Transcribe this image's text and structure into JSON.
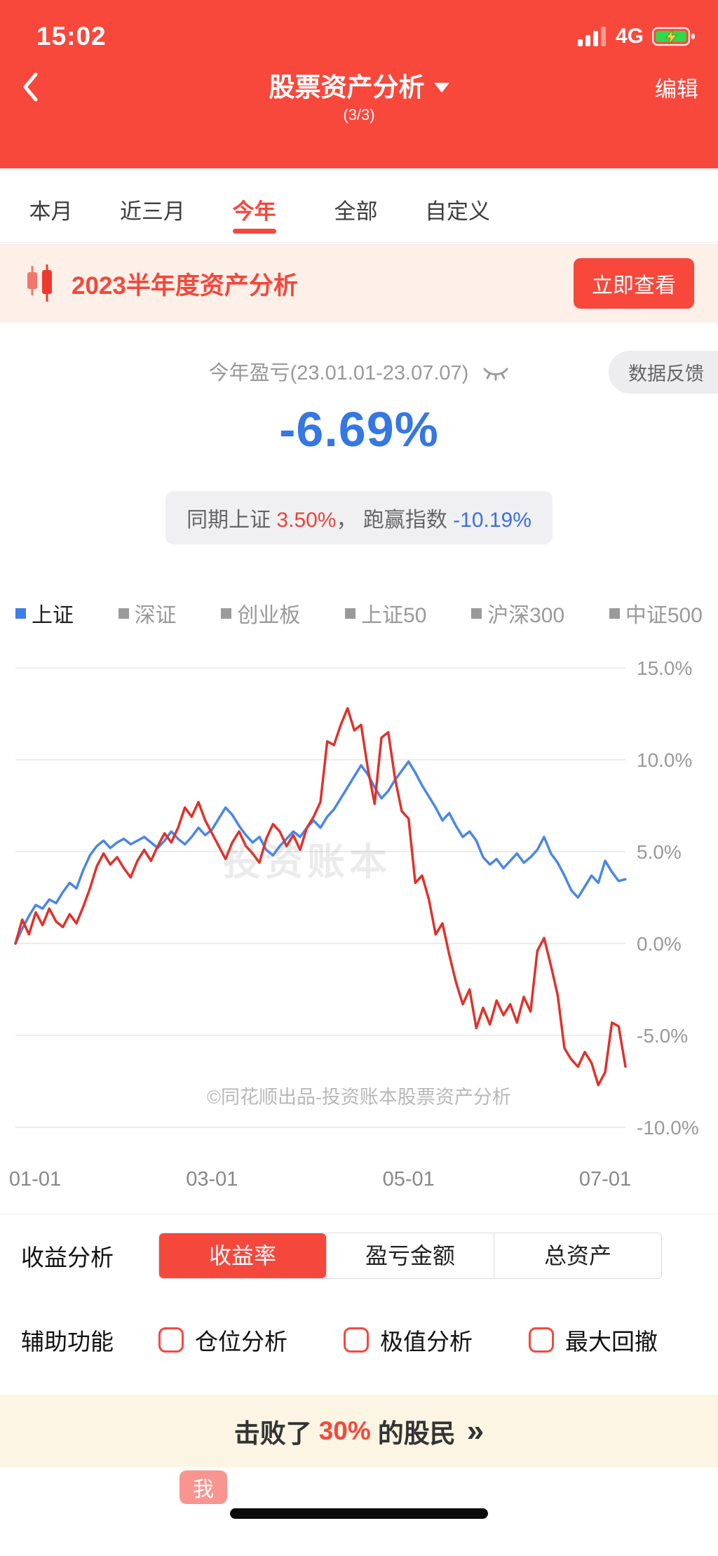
{
  "colors": {
    "accent_red": "#f8473b",
    "value_blue": "#3577e3",
    "line_blue": "#4a86e8",
    "line_red": "#e0322b"
  },
  "status_bar": {
    "time": "15:02",
    "network": "4G"
  },
  "header": {
    "title": "股票资产分析",
    "subtitle": "(3/3)",
    "edit_label": "编辑"
  },
  "tabs": [
    {
      "label": "本月",
      "active": false
    },
    {
      "label": "近三月",
      "active": false
    },
    {
      "label": "今年",
      "active": true
    },
    {
      "label": "全部",
      "active": false
    },
    {
      "label": "自定义",
      "active": false
    }
  ],
  "banner": {
    "title": "2023半年度资产分析",
    "button_label": "立即查看"
  },
  "summary": {
    "period_label": "今年盈亏(23.01.01-23.07.07)",
    "feedback_label": "数据反馈",
    "value": "-6.69%",
    "compare": {
      "prefix": "同期上证 ",
      "index_value": "3.50%",
      "mid": "， 跑赢指数 ",
      "diff_value": "-10.19%"
    }
  },
  "legend": [
    {
      "label": "上证",
      "color": "#3f7de8",
      "active": true
    },
    {
      "label": "深证",
      "color": "#9a9a9a",
      "active": false
    },
    {
      "label": "创业板",
      "color": "#9a9a9a",
      "active": false
    },
    {
      "label": "上证50",
      "color": "#9a9a9a",
      "active": false
    },
    {
      "label": "沪深300",
      "color": "#9a9a9a",
      "active": false
    },
    {
      "label": "中证500",
      "color": "#9a9a9a",
      "active": false
    }
  ],
  "chart_data": {
    "type": "line",
    "ylim": [
      -10,
      15
    ],
    "grid": true,
    "legend_position": "top-left",
    "watermark": "投资账本",
    "source_note": "©同花顺出品-投资账本股票资产分析",
    "y_ticks": [
      {
        "value": 15,
        "label": "15.0%"
      },
      {
        "value": 10,
        "label": "10.0%"
      },
      {
        "value": 5,
        "label": "5.0%"
      },
      {
        "value": 0,
        "label": "0.0%"
      },
      {
        "value": -5,
        "label": "-5.0%"
      },
      {
        "value": -10,
        "label": "-10.0%"
      }
    ],
    "x_ticks": [
      {
        "index": 0,
        "label": "01-01"
      },
      {
        "index": 29,
        "label": "03-01"
      },
      {
        "index": 58,
        "label": "05-01"
      },
      {
        "index": 87,
        "label": "07-01"
      }
    ],
    "series": [
      {
        "name": "上证",
        "color": "#4a86e8",
        "values": [
          0.0,
          0.8,
          1.5,
          2.1,
          1.9,
          2.4,
          2.2,
          2.8,
          3.3,
          3.0,
          4.0,
          4.8,
          5.3,
          5.6,
          5.2,
          5.5,
          5.7,
          5.4,
          5.6,
          5.8,
          5.5,
          5.2,
          5.6,
          6.1,
          5.7,
          5.4,
          5.8,
          6.3,
          5.9,
          6.2,
          6.8,
          7.4,
          7.0,
          6.4,
          5.9,
          5.5,
          5.8,
          5.1,
          4.8,
          5.3,
          5.7,
          6.1,
          5.8,
          6.3,
          6.7,
          6.3,
          6.9,
          7.3,
          7.9,
          8.5,
          9.1,
          9.7,
          9.2,
          8.5,
          7.9,
          8.3,
          8.9,
          9.4,
          9.9,
          9.3,
          8.6,
          8.0,
          7.4,
          6.7,
          7.1,
          6.4,
          5.8,
          6.1,
          5.6,
          4.7,
          4.3,
          4.6,
          4.1,
          4.5,
          4.9,
          4.4,
          4.7,
          5.1,
          5.8,
          4.9,
          4.4,
          3.7,
          2.9,
          2.5,
          3.1,
          3.7,
          3.3,
          4.5,
          3.9,
          3.4,
          3.5
        ]
      },
      {
        "name": "收益率",
        "color": "#e0322b",
        "values": [
          0.0,
          1.3,
          0.5,
          1.7,
          1.0,
          1.9,
          1.2,
          0.9,
          1.6,
          1.1,
          2.0,
          3.0,
          4.2,
          4.9,
          4.3,
          4.7,
          4.1,
          3.6,
          4.5,
          5.1,
          4.5,
          5.3,
          6.0,
          5.5,
          6.3,
          7.4,
          6.9,
          7.7,
          6.7,
          6.0,
          5.3,
          4.6,
          5.5,
          6.1,
          5.3,
          4.9,
          4.4,
          5.7,
          6.5,
          6.1,
          5.3,
          5.9,
          5.1,
          6.3,
          6.9,
          7.7,
          11.0,
          10.8,
          11.9,
          12.8,
          11.6,
          11.9,
          9.5,
          7.6,
          11.2,
          11.5,
          9.0,
          7.2,
          6.8,
          3.3,
          3.7,
          2.4,
          0.5,
          1.1,
          -0.6,
          -2.1,
          -3.3,
          -2.5,
          -4.6,
          -3.5,
          -4.4,
          -3.1,
          -3.9,
          -3.3,
          -4.3,
          -2.9,
          -3.7,
          -0.4,
          0.3,
          -1.2,
          -2.8,
          -5.7,
          -6.3,
          -6.7,
          -5.9,
          -6.5,
          -7.7,
          -7.0,
          -4.3,
          -4.5,
          -6.69
        ]
      }
    ]
  },
  "analysis": {
    "label": "收益分析",
    "segments": [
      {
        "label": "收益率",
        "active": true
      },
      {
        "label": "盈亏金额",
        "active": false
      },
      {
        "label": "总资产",
        "active": false
      }
    ]
  },
  "aux": {
    "label": "辅助功能",
    "options": [
      "仓位分析",
      "极值分析",
      "最大回撤"
    ]
  },
  "footer_banner": {
    "prefix": "击败了",
    "highlight": "30%",
    "suffix": "的股民",
    "arrows": "»"
  },
  "me_tag": "我"
}
